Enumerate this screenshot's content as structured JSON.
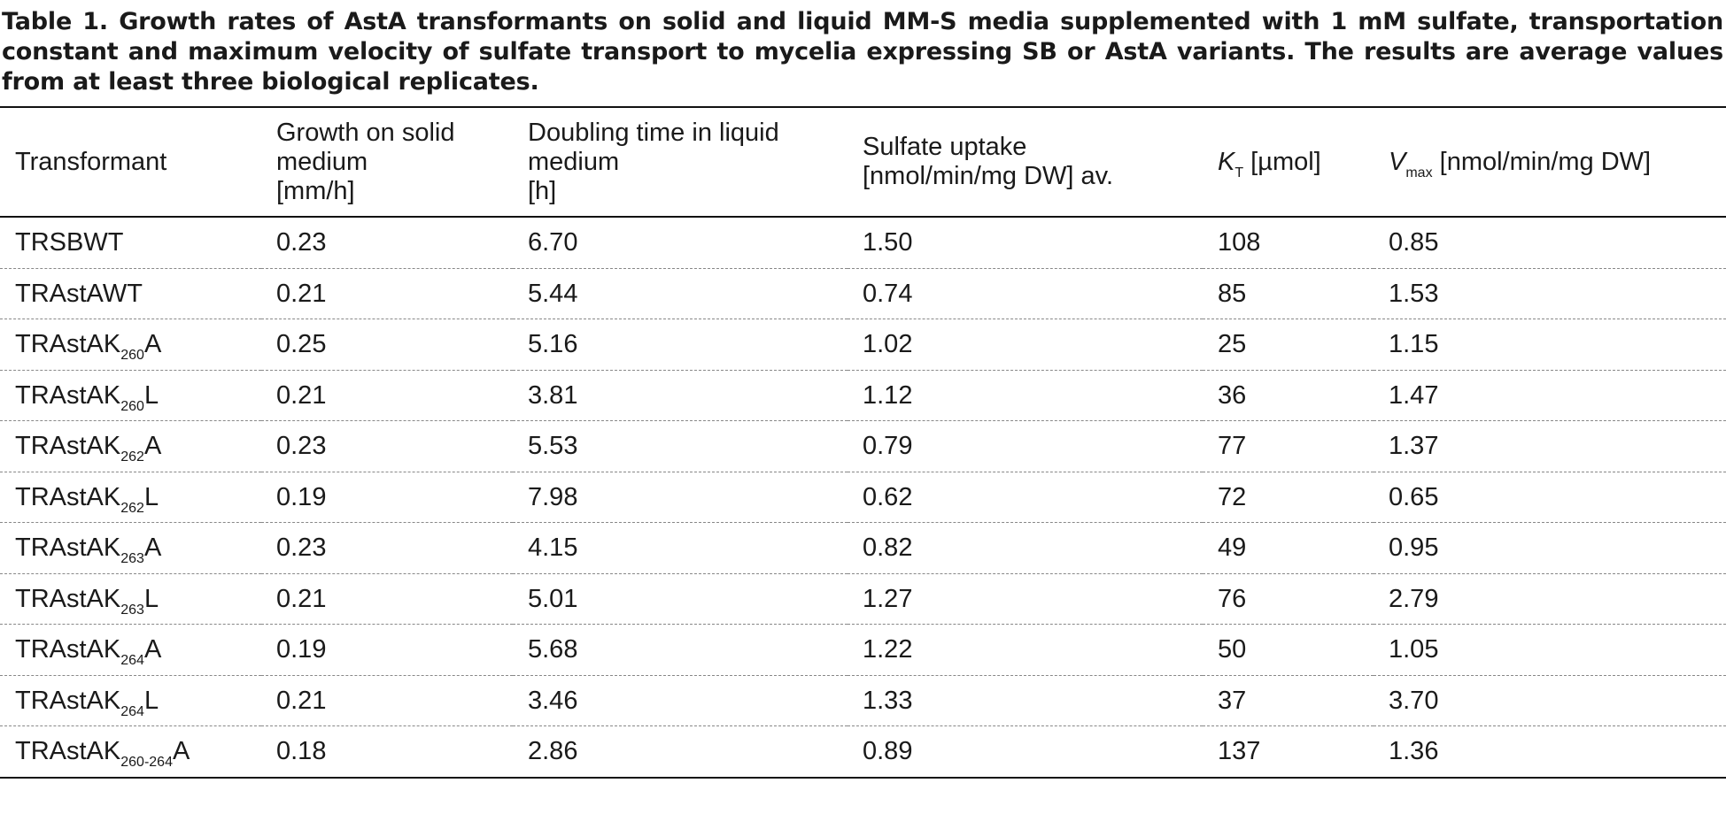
{
  "caption": "Table 1. Growth rates of AstA transformants on solid and liquid MM-S media supplemented with 1 mM sulfate, transportation constant and maximum velocity of sulfate transport to mycelia expressing SB or AstA variants. The results are average values from at least three biological replicates.",
  "headers": {
    "transformant": "Transformant",
    "growth_solid_l1": "Growth on solid",
    "growth_solid_l2": "medium",
    "growth_solid_l3": "[mm/h]",
    "doubling_l1": "Doubling time in liquid",
    "doubling_l2": "medium",
    "doubling_l3": "[h]",
    "uptake_l1": "Sulfate uptake",
    "uptake_l2": "[nmol/min/mg DW] av.",
    "kt_symbol": "K",
    "kt_sub": "T",
    "kt_unit": " [µmol]",
    "vmax_symbol": "V",
    "vmax_sub": "max",
    "vmax_unit": " [nmol/min/mg DW]"
  },
  "rows": [
    {
      "name": "TRSBWT",
      "sub": "",
      "suffix": "",
      "growth": "0.23",
      "doubling": "6.70",
      "uptake": "1.50",
      "kt": "108",
      "vmax": "0.85"
    },
    {
      "name": "TRAstAWT",
      "sub": "",
      "suffix": "",
      "growth": "0.21",
      "doubling": "5.44",
      "uptake": "0.74",
      "kt": "85",
      "vmax": "1.53"
    },
    {
      "name": "TRAstAK",
      "sub": "260",
      "suffix": "A",
      "growth": "0.25",
      "doubling": "5.16",
      "uptake": "1.02",
      "kt": "25",
      "vmax": "1.15"
    },
    {
      "name": "TRAstAK",
      "sub": "260",
      "suffix": "L",
      "growth": "0.21",
      "doubling": "3.81",
      "uptake": "1.12",
      "kt": "36",
      "vmax": "1.47"
    },
    {
      "name": "TRAstAK",
      "sub": "262",
      "suffix": "A",
      "growth": "0.23",
      "doubling": "5.53",
      "uptake": "0.79",
      "kt": "77",
      "vmax": "1.37"
    },
    {
      "name": "TRAstAK",
      "sub": "262",
      "suffix": "L",
      "growth": "0.19",
      "doubling": "7.98",
      "uptake": "0.62",
      "kt": "72",
      "vmax": "0.65"
    },
    {
      "name": "TRAstAK",
      "sub": "263",
      "suffix": "A",
      "growth": "0.23",
      "doubling": "4.15",
      "uptake": "0.82",
      "kt": "49",
      "vmax": "0.95"
    },
    {
      "name": "TRAstAK",
      "sub": "263",
      "suffix": "L",
      "growth": "0.21",
      "doubling": "5.01",
      "uptake": "1.27",
      "kt": "76",
      "vmax": "2.79"
    },
    {
      "name": "TRAstAK",
      "sub": "264",
      "suffix": "A",
      "growth": "0.19",
      "doubling": "5.68",
      "uptake": "1.22",
      "kt": "50",
      "vmax": "1.05"
    },
    {
      "name": "TRAstAK",
      "sub": "264",
      "suffix": "L",
      "growth": "0.21",
      "doubling": "3.46",
      "uptake": "1.33",
      "kt": "37",
      "vmax": "3.70"
    },
    {
      "name": "TRAstAK",
      "sub": "260-264",
      "suffix": "A",
      "growth": "0.18",
      "doubling": "2.86",
      "uptake": "0.89",
      "kt": "137",
      "vmax": "1.36"
    }
  ]
}
